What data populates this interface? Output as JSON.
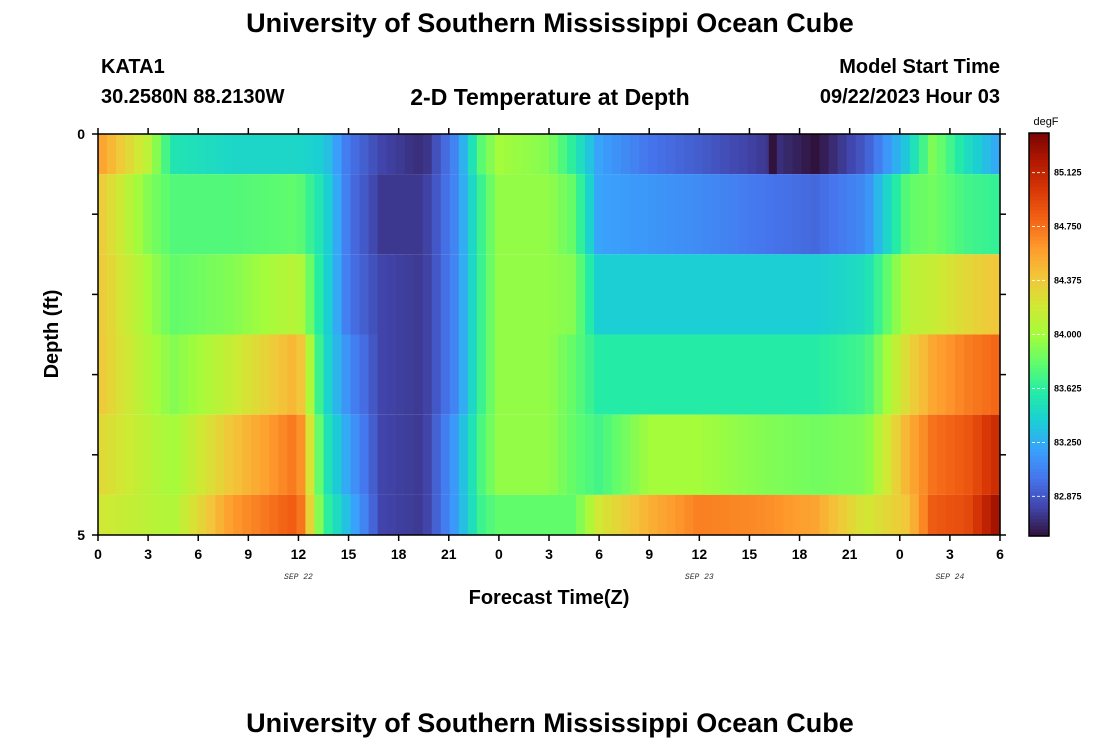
{
  "page": {
    "title_top": "University of Southern Mississippi Ocean Cube",
    "title_bottom": "University of Southern Mississippi Ocean Cube",
    "station_id": "KATA1",
    "coordinates": "30.2580N  88.2130W",
    "subtitle": "2-D Temperature at Depth",
    "model_start_label": "Model Start Time",
    "model_start_value": "09/22/2023 Hour 03"
  },
  "chart_data": {
    "type": "heatmap",
    "title": "2-D Temperature at Depth",
    "xlabel": "Forecast Time(Z)",
    "ylabel": "Depth (ft)",
    "x_hours_range": [
      0,
      54
    ],
    "x_ticks": [
      "0",
      "3",
      "6",
      "9",
      "12",
      "15",
      "18",
      "21",
      "0",
      "3",
      "6",
      "9",
      "12",
      "15",
      "18",
      "21",
      "0",
      "3",
      "6"
    ],
    "date_labels": [
      {
        "label": "SEP 22",
        "hour": 12
      },
      {
        "label": "SEP 23",
        "hour": 36
      },
      {
        "label": "SEP 24",
        "hour": 51
      }
    ],
    "y_ticks": [
      "0",
      "5"
    ],
    "ylim": [
      0,
      5
    ],
    "colorbar": {
      "unit": "degF",
      "min": 82.6,
      "max": 85.4,
      "labels": [
        "85.125",
        "84.750",
        "84.375",
        "84.000",
        "83.625",
        "83.250",
        "82.875"
      ],
      "label_values": [
        85.125,
        84.75,
        84.375,
        84.0,
        83.625,
        83.25,
        82.875
      ],
      "colormap": [
        "#30123b",
        "#4145ab",
        "#4675ed",
        "#39a2fc",
        "#1bcfd4",
        "#24eca6",
        "#61fc6c",
        "#a4fc3b",
        "#d1e834",
        "#f3c63a",
        "#fe9b2d",
        "#f36315",
        "#d93806",
        "#b11901",
        "#7a0403"
      ]
    },
    "depth_bands": [
      "0.0-0.5 ft",
      "0.5-1.5 ft",
      "1.5-2.5 ft",
      "2.5-3.5 ft",
      "3.5-4.5 ft",
      "4.5-5.0 ft"
    ],
    "time_keyframes_hours": [
      0,
      3,
      4.5,
      8,
      12,
      13.5,
      15,
      17,
      19.5,
      21.5,
      23,
      24,
      27,
      28.5,
      30,
      33,
      36,
      40,
      43,
      46,
      48.5,
      50,
      52,
      54
    ],
    "temperature_keyframes": [
      [
        84.6,
        84.1,
        83.55,
        83.45,
        83.45,
        83.4,
        83.0,
        82.8,
        82.7,
        83.1,
        83.8,
        84.0,
        83.9,
        83.6,
        83.2,
        83.0,
        82.9,
        82.75,
        82.6,
        82.9,
        83.4,
        83.9,
        83.5,
        83.2
      ],
      [
        84.4,
        83.9,
        83.75,
        83.75,
        83.8,
        83.5,
        83.0,
        82.75,
        82.75,
        83.1,
        83.7,
        83.95,
        83.95,
        83.8,
        83.2,
        83.15,
        83.1,
        83.0,
        82.95,
        83.1,
        83.8,
        83.85,
        83.7,
        83.65
      ],
      [
        84.4,
        84.0,
        83.8,
        83.9,
        84.1,
        83.5,
        83.0,
        82.8,
        82.75,
        83.1,
        83.7,
        83.95,
        83.95,
        83.9,
        83.4,
        83.4,
        83.4,
        83.4,
        83.4,
        83.5,
        84.1,
        84.15,
        84.3,
        84.4
      ],
      [
        84.4,
        84.05,
        83.9,
        84.15,
        84.5,
        83.5,
        83.1,
        82.8,
        82.75,
        83.1,
        83.7,
        83.95,
        83.95,
        83.8,
        83.6,
        83.6,
        83.6,
        83.6,
        83.6,
        83.7,
        84.3,
        84.55,
        84.7,
        84.8
      ],
      [
        84.3,
        84.1,
        84.0,
        84.4,
        84.75,
        83.6,
        83.2,
        82.8,
        82.75,
        83.2,
        83.75,
        83.95,
        83.95,
        83.8,
        83.7,
        84.0,
        84.0,
        83.9,
        83.85,
        83.9,
        84.5,
        84.75,
        84.85,
        85.1
      ],
      [
        84.2,
        84.1,
        84.05,
        84.6,
        84.85,
        83.7,
        83.3,
        82.8,
        82.75,
        83.2,
        83.7,
        83.8,
        83.8,
        83.8,
        84.2,
        84.5,
        84.7,
        84.65,
        84.55,
        84.2,
        84.4,
        84.85,
        84.9,
        85.3
      ]
    ],
    "spike": {
      "hour": 40.4,
      "band": 0,
      "value": 82.5
    }
  }
}
